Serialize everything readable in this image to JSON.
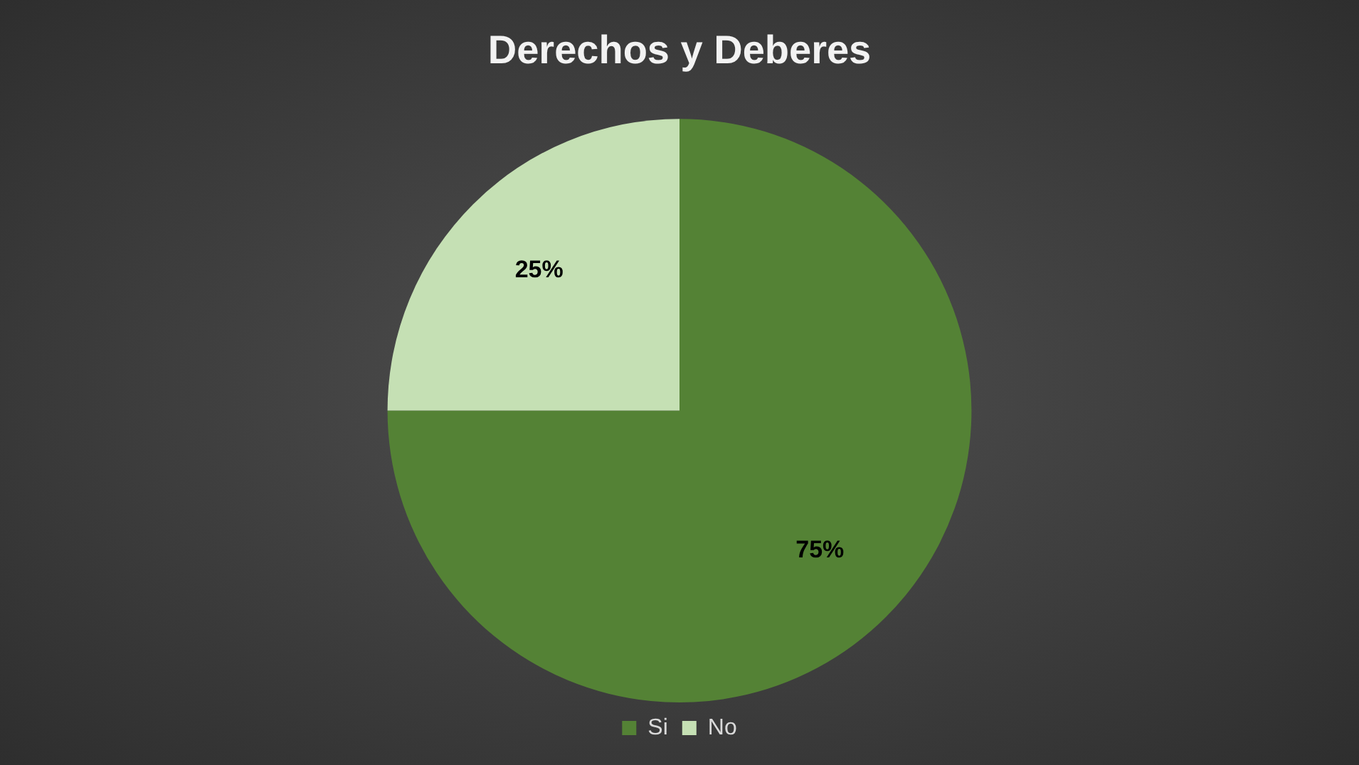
{
  "chart_data": {
    "type": "pie",
    "title": "Derechos y Deberes",
    "categories": [
      "Si",
      "No"
    ],
    "values": [
      75,
      25
    ],
    "colors": [
      "#548235",
      "#c5e0b4"
    ],
    "value_labels": [
      "75%",
      "25%"
    ],
    "legend": "bottom"
  }
}
